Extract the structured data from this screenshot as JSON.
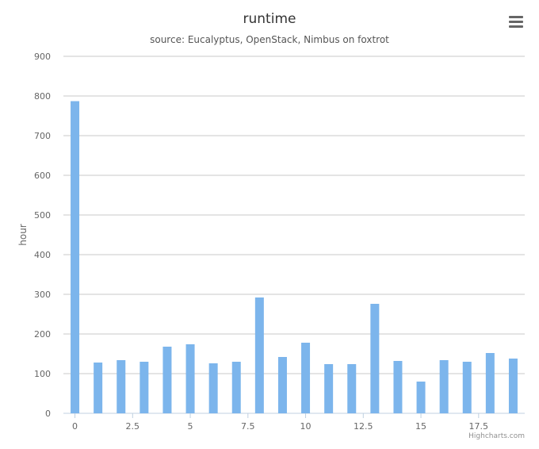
{
  "chart_data": {
    "type": "bar",
    "title": "runtime",
    "subtitle": "source: Eucalyptus, OpenStack, Nimbus on foxtrot",
    "ylabel": "hour",
    "xlabel": "",
    "x": [
      0,
      1,
      2,
      3,
      4,
      5,
      6,
      7,
      8,
      9,
      10,
      11,
      12,
      13,
      14,
      15,
      16,
      17,
      18,
      19
    ],
    "values": [
      787,
      128,
      134,
      130,
      168,
      174,
      126,
      130,
      292,
      142,
      178,
      124,
      124,
      276,
      132,
      80,
      134,
      130,
      152,
      138
    ],
    "ylim": [
      0,
      900
    ],
    "yticks": [
      0,
      100,
      200,
      300,
      400,
      500,
      600,
      700,
      800,
      900
    ],
    "xlim": [
      -0.5,
      19.5
    ],
    "xticks": [
      0,
      2.5,
      5,
      7.5,
      10,
      12.5,
      15,
      17.5
    ],
    "xtick_labels": [
      "0",
      "2.5",
      "5",
      "7.5",
      "10",
      "12.5",
      "15",
      "17.5"
    ],
    "grid": true,
    "bar_color": "#7cb5ec"
  },
  "credits": "Highcharts.com",
  "menu_icon": "hamburger-menu-icon"
}
